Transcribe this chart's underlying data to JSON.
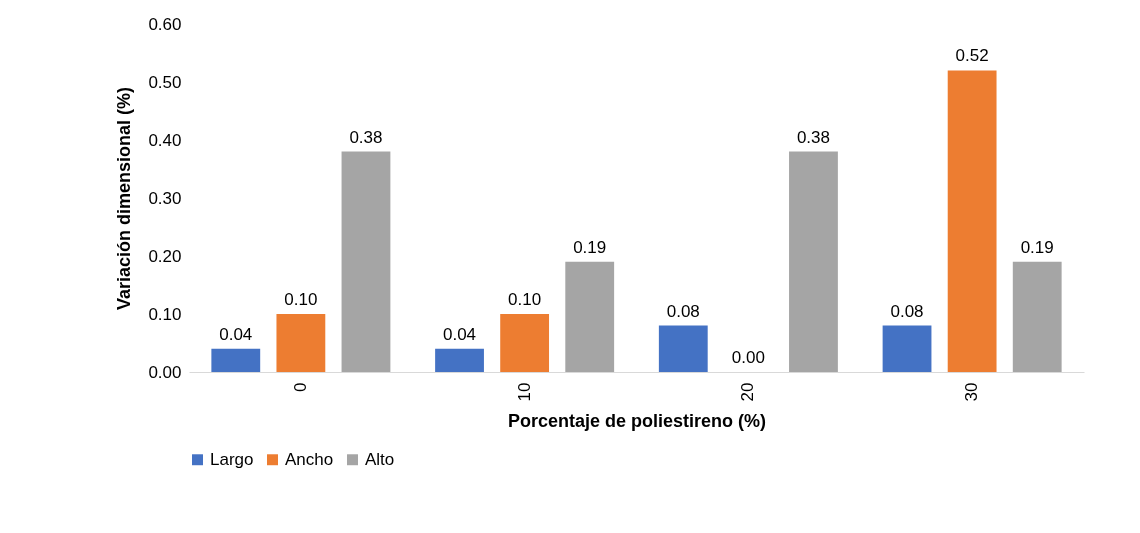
{
  "chart_data": {
    "type": "bar",
    "xlabel": "Porcentaje de poliestireno (%)",
    "ylabel": "Variación dimensional (%)",
    "categories": [
      "0",
      "10",
      "20",
      "30"
    ],
    "series": [
      {
        "name": "Largo",
        "color": "#4472c4",
        "values": [
          0.04,
          0.04,
          0.08,
          0.08
        ],
        "value_labels": [
          "0.04",
          "0.04",
          "0.08",
          "0.08"
        ]
      },
      {
        "name": "Ancho",
        "color": "#ed7d31",
        "values": [
          0.1,
          0.1,
          0.0,
          0.52
        ],
        "value_labels": [
          "0.10",
          "0.10",
          "0.00",
          "0.52"
        ]
      },
      {
        "name": "Alto",
        "color": "#a5a5a5",
        "values": [
          0.38,
          0.19,
          0.38,
          0.19
        ],
        "value_labels": [
          "0.38",
          "0.19",
          "0.38",
          "0.19"
        ]
      }
    ],
    "ylim": [
      0,
      0.6
    ],
    "yticks": [
      {
        "value": 0,
        "label": "0.00"
      },
      {
        "value": 0.1,
        "label": "0.10"
      },
      {
        "value": 0.2,
        "label": "0.20"
      },
      {
        "value": 0.3,
        "label": "0.30"
      },
      {
        "value": 0.4,
        "label": "0.40"
      },
      {
        "value": 0.5,
        "label": "0.50"
      },
      {
        "value": 0.6,
        "label": "0.60"
      }
    ],
    "grid": false,
    "legend": "bottom"
  }
}
